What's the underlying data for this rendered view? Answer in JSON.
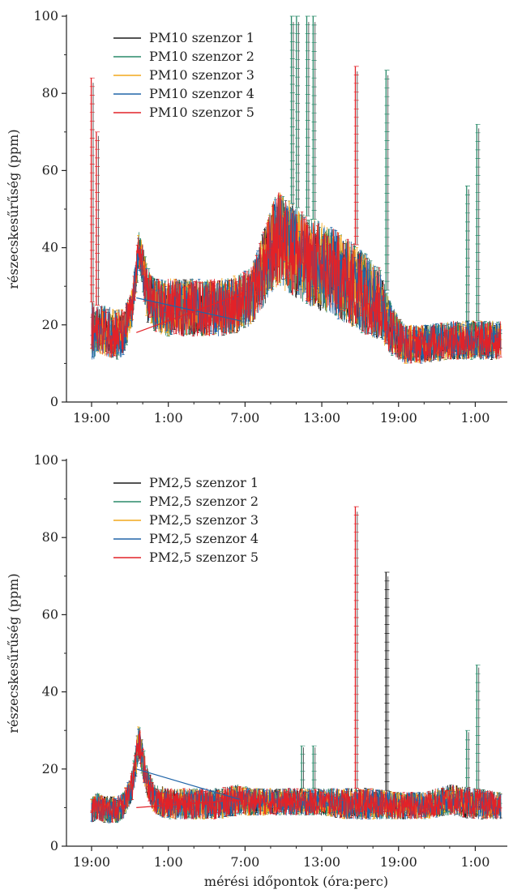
{
  "chart_data": [
    {
      "type": "line",
      "xlabel": "",
      "ylabel": "részecskesűrűség (ppm)",
      "ylim": [
        0,
        100
      ],
      "yticks": [
        0,
        20,
        40,
        60,
        80,
        100
      ],
      "xlim": [
        0,
        32
      ],
      "xticks": [
        {
          "x": 0,
          "label": "19:00"
        },
        {
          "x": 6,
          "label": "1:00"
        },
        {
          "x": 12,
          "label": "7:00"
        },
        {
          "x": 18,
          "label": "13:00"
        },
        {
          "x": 24,
          "label": "19:00"
        },
        {
          "x": 30,
          "label": "1:00"
        }
      ],
      "legend": "top-left",
      "grid": false,
      "series": [
        {
          "name": "PM10 szenzor 1",
          "color": "#1a1a1a"
        },
        {
          "name": "PM10 szenzor 2",
          "color": "#2a8a6a"
        },
        {
          "name": "PM10 szenzor 3",
          "color": "#f2a81d"
        },
        {
          "name": "PM10 szenzor 4",
          "color": "#2065a8"
        },
        {
          "name": "PM10 szenzor 5",
          "color": "#e22228"
        }
      ],
      "profile": {
        "x": [
          0,
          0.5,
          1,
          2,
          2.5,
          3.2,
          3.7,
          4.4,
          5,
          6,
          8,
          10,
          11.5,
          12.5,
          13.5,
          14.5,
          15.5,
          17,
          19,
          21,
          22.5,
          23.5,
          24.5,
          26,
          28,
          30,
          32
        ],
        "low": [
          10,
          13,
          12,
          11,
          12,
          20,
          35,
          20,
          18,
          17,
          17,
          17,
          18,
          20,
          25,
          30,
          28,
          25,
          22,
          18,
          16,
          12,
          10,
          10,
          11,
          11,
          11
        ],
        "high": [
          26,
          25,
          25,
          24,
          24,
          30,
          45,
          35,
          32,
          32,
          32,
          32,
          33,
          35,
          45,
          55,
          52,
          48,
          45,
          40,
          35,
          25,
          20,
          20,
          21,
          21,
          21
        ]
      },
      "spikes": [
        {
          "x": 0.05,
          "y": 84,
          "series": 4
        },
        {
          "x": 0.45,
          "y": 70,
          "series": 4
        },
        {
          "x": 15.7,
          "y": 100,
          "series": 1
        },
        {
          "x": 16.1,
          "y": 100,
          "series": 1
        },
        {
          "x": 16.9,
          "y": 100,
          "series": 1
        },
        {
          "x": 17.4,
          "y": 100,
          "series": 1
        },
        {
          "x": 20.7,
          "y": 87,
          "series": 4
        },
        {
          "x": 23.1,
          "y": 86,
          "series": 1
        },
        {
          "x": 29.4,
          "y": 56,
          "series": 1
        },
        {
          "x": 30.2,
          "y": 72,
          "series": 1
        }
      ],
      "connectors": [
        {
          "x1": 3.5,
          "y1": 27,
          "x2": 11.7,
          "y2": 21,
          "series": 3
        },
        {
          "x1": 3.5,
          "y1": 18,
          "x2": 11.7,
          "y2": 28,
          "series": 4
        }
      ]
    },
    {
      "type": "line",
      "xlabel": "mérési időpontok (óra:perc)",
      "ylabel": "részecskesűrűség (ppm)",
      "ylim": [
        0,
        100
      ],
      "yticks": [
        0,
        20,
        40,
        60,
        80,
        100
      ],
      "xlim": [
        0,
        32
      ],
      "xticks": [
        {
          "x": 0,
          "label": "19:00"
        },
        {
          "x": 6,
          "label": "1:00"
        },
        {
          "x": 12,
          "label": "7:00"
        },
        {
          "x": 18,
          "label": "13:00"
        },
        {
          "x": 24,
          "label": "19:00"
        },
        {
          "x": 30,
          "label": "1:00"
        }
      ],
      "legend": "top-left",
      "grid": false,
      "series": [
        {
          "name": "PM2,5 szenzor 1",
          "color": "#1a1a1a"
        },
        {
          "name": "PM2,5 szenzor 2",
          "color": "#2a8a6a"
        },
        {
          "name": "PM2,5 szenzor 3",
          "color": "#f2a81d"
        },
        {
          "name": "PM2,5 szenzor 4",
          "color": "#2065a8"
        },
        {
          "name": "PM2,5 szenzor 5",
          "color": "#e22228"
        }
      ],
      "profile": {
        "x": [
          0,
          0.5,
          1,
          2,
          2.5,
          3.2,
          3.7,
          4.4,
          5,
          6,
          8,
          10,
          11.5,
          12.5,
          14,
          16,
          18,
          20,
          22,
          24,
          26,
          28,
          30,
          32
        ],
        "low": [
          6,
          7,
          6,
          6,
          7,
          12,
          22,
          12,
          8,
          7,
          7,
          7,
          8,
          8,
          8,
          8,
          8,
          7,
          7,
          7,
          7,
          8,
          7,
          7
        ],
        "high": [
          13,
          14,
          13,
          13,
          14,
          20,
          32,
          20,
          16,
          15,
          15,
          15,
          16,
          15,
          15,
          15,
          15,
          15,
          15,
          14,
          14,
          16,
          15,
          14
        ]
      },
      "spikes": [
        {
          "x": 16.5,
          "y": 26,
          "series": 1
        },
        {
          "x": 17.4,
          "y": 26,
          "series": 1
        },
        {
          "x": 20.7,
          "y": 88,
          "series": 4
        },
        {
          "x": 23.1,
          "y": 71,
          "series": 0
        },
        {
          "x": 29.4,
          "y": 30,
          "series": 1
        },
        {
          "x": 30.2,
          "y": 47,
          "series": 1
        }
      ],
      "connectors": [
        {
          "x1": 3.5,
          "y1": 20,
          "x2": 11.7,
          "y2": 12,
          "series": 3
        },
        {
          "x1": 3.5,
          "y1": 10,
          "x2": 11.7,
          "y2": 12,
          "series": 4
        }
      ]
    }
  ]
}
